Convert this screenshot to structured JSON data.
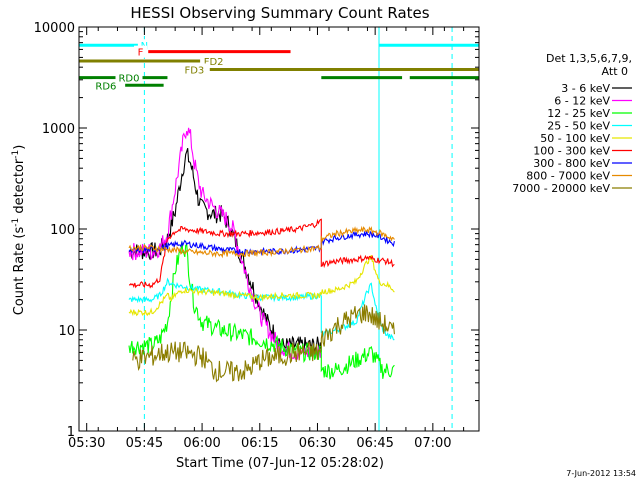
{
  "chart_data": {
    "type": "line",
    "title": "HESSI Observing Summary Count Rates",
    "xlabel": "Start Time (07-Jun-12 05:28:02)",
    "ylabel": "Count Rate (s",
    "ylabel_sup1": "-1",
    "ylabel_mid": " detector",
    "ylabel_sup2": "-1",
    "ylabel_end": ")",
    "y_scale": "log",
    "ylim": [
      1,
      10000
    ],
    "xlim": [
      "05:28",
      "07:12"
    ],
    "x_ticks": [
      "05:30",
      "05:45",
      "06:00",
      "06:15",
      "06:30",
      "06:45",
      "07:00"
    ],
    "y_ticks": [
      "1",
      "10",
      "100",
      "1000",
      "10000"
    ],
    "grid": false,
    "legend_title": "Det 1,3,5,6,7,9,",
    "legend_subtitle": "Att 0",
    "legend_position": "right",
    "series": [
      {
        "name": "3 - 6 keV",
        "color": "#000000",
        "points": [
          [
            "05:41",
            60
          ],
          [
            "05:47",
            60
          ],
          [
            "05:49",
            62
          ],
          [
            "05:51",
            80
          ],
          [
            "05:53",
            150
          ],
          [
            "05:55",
            400
          ],
          [
            "05:56",
            550
          ],
          [
            "05:57",
            450
          ],
          [
            "05:58",
            300
          ],
          [
            "05:59",
            200
          ],
          [
            "06:00",
            160
          ],
          [
            "06:03",
            140
          ],
          [
            "06:05",
            140
          ],
          [
            "06:07",
            110
          ],
          [
            "06:09",
            70
          ],
          [
            "06:11",
            45
          ],
          [
            "06:13",
            28
          ],
          [
            "06:15",
            18
          ],
          [
            "06:17",
            12
          ],
          [
            "06:19",
            9
          ],
          [
            "06:21",
            7
          ],
          [
            "06:25",
            7
          ],
          [
            "06:31",
            7
          ]
        ]
      },
      {
        "name": "6 - 12 keV",
        "color": "#ff00ff",
        "points": [
          [
            "05:41",
            60
          ],
          [
            "05:47",
            60
          ],
          [
            "05:49",
            65
          ],
          [
            "05:51",
            90
          ],
          [
            "05:53",
            250
          ],
          [
            "05:55",
            700
          ],
          [
            "05:56",
            1050
          ],
          [
            "05:57",
            800
          ],
          [
            "05:58",
            450
          ],
          [
            "05:59",
            300
          ],
          [
            "06:00",
            220
          ],
          [
            "06:02",
            180
          ],
          [
            "06:04",
            150
          ],
          [
            "06:06",
            130
          ],
          [
            "06:08",
            100
          ],
          [
            "06:10",
            55
          ],
          [
            "06:12",
            30
          ],
          [
            "06:14",
            18
          ],
          [
            "06:16",
            12
          ],
          [
            "06:18",
            9
          ],
          [
            "06:20",
            7
          ],
          [
            "06:24",
            6
          ],
          [
            "06:31",
            6
          ]
        ]
      },
      {
        "name": "12 - 25 keV",
        "color": "#00ff00",
        "points": [
          [
            "05:41",
            7
          ],
          [
            "05:47",
            7
          ],
          [
            "05:49",
            8
          ],
          [
            "05:51",
            12
          ],
          [
            "05:53",
            40
          ],
          [
            "05:55",
            70
          ],
          [
            "05:56",
            60
          ],
          [
            "05:57",
            30
          ],
          [
            "05:58",
            18
          ],
          [
            "06:00",
            12
          ],
          [
            "06:05",
            10
          ],
          [
            "06:10",
            9
          ],
          [
            "06:15",
            8
          ],
          [
            "06:20",
            7
          ],
          [
            "06:25",
            6
          ],
          [
            "06:31",
            6
          ],
          [
            "06:31",
            4
          ],
          [
            "06:35",
            4
          ],
          [
            "06:40",
            5
          ],
          [
            "06:44",
            6
          ],
          [
            "06:47",
            4
          ],
          [
            "06:50",
            4
          ]
        ]
      },
      {
        "name": "25 - 50 keV",
        "color": "#00ffff",
        "points": [
          [
            "05:41",
            20
          ],
          [
            "05:47",
            20
          ],
          [
            "05:49",
            22
          ],
          [
            "05:51",
            30
          ],
          [
            "05:53",
            28
          ],
          [
            "05:55",
            27
          ],
          [
            "06:00",
            25
          ],
          [
            "06:05",
            24
          ],
          [
            "06:10",
            22
          ],
          [
            "06:15",
            21
          ],
          [
            "06:20",
            21
          ],
          [
            "06:25",
            21
          ],
          [
            "06:31",
            22
          ],
          [
            "06:31",
            9
          ],
          [
            "06:35",
            10
          ],
          [
            "06:40",
            12
          ],
          [
            "06:43",
            24
          ],
          [
            "06:44",
            28
          ],
          [
            "06:46",
            12
          ],
          [
            "06:48",
            9
          ],
          [
            "06:50",
            8
          ]
        ]
      },
      {
        "name": "50 - 100 keV",
        "color": "#e6e600",
        "points": [
          [
            "05:41",
            15
          ],
          [
            "05:47",
            15
          ],
          [
            "05:49",
            18
          ],
          [
            "05:51",
            22
          ],
          [
            "05:52",
            20
          ],
          [
            "05:53",
            22
          ],
          [
            "05:55",
            25
          ],
          [
            "06:00",
            24
          ],
          [
            "06:05",
            23
          ],
          [
            "06:10",
            22
          ],
          [
            "06:15",
            21
          ],
          [
            "06:20",
            22
          ],
          [
            "06:25",
            22
          ],
          [
            "06:31",
            22
          ],
          [
            "06:31",
            24
          ],
          [
            "06:35",
            25
          ],
          [
            "06:40",
            30
          ],
          [
            "06:43",
            48
          ],
          [
            "06:44",
            52
          ],
          [
            "06:46",
            30
          ],
          [
            "06:48",
            28
          ],
          [
            "06:50",
            25
          ]
        ]
      },
      {
        "name": "100 - 300 keV",
        "color": "#ff0000",
        "points": [
          [
            "05:41",
            28
          ],
          [
            "05:47",
            28
          ],
          [
            "05:49",
            32
          ],
          [
            "05:51",
            80
          ],
          [
            "05:53",
            95
          ],
          [
            "05:55",
            100
          ],
          [
            "06:00",
            95
          ],
          [
            "06:05",
            90
          ],
          [
            "06:10",
            90
          ],
          [
            "06:15",
            92
          ],
          [
            "06:20",
            95
          ],
          [
            "06:25",
            100
          ],
          [
            "06:29",
            110
          ],
          [
            "06:31",
            120
          ],
          [
            "06:31",
            45
          ],
          [
            "06:35",
            48
          ],
          [
            "06:40",
            50
          ],
          [
            "06:43",
            52
          ],
          [
            "06:45",
            50
          ],
          [
            "06:48",
            48
          ],
          [
            "06:50",
            45
          ]
        ]
      },
      {
        "name": "300 - 800 keV",
        "color": "#0000ff",
        "points": [
          [
            "05:41",
            60
          ],
          [
            "05:47",
            63
          ],
          [
            "05:50",
            66
          ],
          [
            "05:53",
            70
          ],
          [
            "05:55",
            72
          ],
          [
            "06:00",
            68
          ],
          [
            "06:05",
            63
          ],
          [
            "06:10",
            60
          ],
          [
            "06:15",
            60
          ],
          [
            "06:20",
            60
          ],
          [
            "06:25",
            62
          ],
          [
            "06:31",
            65
          ],
          [
            "06:31",
            75
          ],
          [
            "06:35",
            82
          ],
          [
            "06:40",
            88
          ],
          [
            "06:43",
            90
          ],
          [
            "06:46",
            85
          ],
          [
            "06:48",
            78
          ],
          [
            "06:50",
            72
          ]
        ]
      },
      {
        "name": "800 - 7000 keV",
        "color": "#e68a00",
        "points": [
          [
            "05:41",
            65
          ],
          [
            "05:47",
            65
          ],
          [
            "05:50",
            63
          ],
          [
            "05:53",
            62
          ],
          [
            "05:55",
            60
          ],
          [
            "06:00",
            58
          ],
          [
            "06:05",
            57
          ],
          [
            "06:10",
            57
          ],
          [
            "06:15",
            58
          ],
          [
            "06:20",
            60
          ],
          [
            "06:25",
            62
          ],
          [
            "06:31",
            65
          ],
          [
            "06:31",
            80
          ],
          [
            "06:35",
            90
          ],
          [
            "06:40",
            96
          ],
          [
            "06:43",
            98
          ],
          [
            "06:46",
            92
          ],
          [
            "06:48",
            85
          ],
          [
            "06:50",
            80
          ]
        ]
      },
      {
        "name": "7000 - 20000 keV",
        "color": "#8b7d00",
        "points": [
          [
            "05:42",
            5
          ],
          [
            "05:47",
            5.5
          ],
          [
            "05:50",
            6
          ],
          [
            "05:53",
            6
          ],
          [
            "05:55",
            6
          ],
          [
            "06:00",
            5.5
          ],
          [
            "06:03",
            4
          ],
          [
            "06:08",
            3.8
          ],
          [
            "06:12",
            4
          ],
          [
            "06:15",
            5
          ],
          [
            "06:20",
            5.5
          ],
          [
            "06:25",
            6
          ],
          [
            "06:31",
            6
          ],
          [
            "06:31",
            8
          ],
          [
            "06:35",
            11
          ],
          [
            "06:40",
            14
          ],
          [
            "06:43",
            15
          ],
          [
            "06:46",
            12
          ],
          [
            "06:48",
            11
          ],
          [
            "06:50",
            9
          ]
        ]
      }
    ],
    "vertical_lines": [
      {
        "x": "05:28",
        "color": "#00ffff",
        "style": "solid"
      },
      {
        "x": "05:45",
        "color": "#00ffff",
        "style": "dashed"
      },
      {
        "x": "06:46",
        "color": "#00ffff",
        "style": "solid"
      },
      {
        "x": "07:05",
        "color": "#00ffff",
        "style": "dashed"
      }
    ],
    "flag_bars": [
      {
        "label": "N",
        "color": "#00ffff",
        "segments": [
          [
            "05:28",
            "05:45"
          ],
          [
            "06:46",
            "07:12"
          ]
        ],
        "label_at": "05:45",
        "level": 6600
      },
      {
        "label": "F",
        "color": "#ff0000",
        "segments": [
          [
            "05:46",
            "06:23"
          ]
        ],
        "label_at": "05:44",
        "level": 5700
      },
      {
        "label": "FD2",
        "color": "#808000",
        "segments": [
          [
            "05:28",
            "06:01"
          ]
        ],
        "label_at": "06:03",
        "level": 4600
      },
      {
        "label": "FD3",
        "color": "#808000",
        "segments": [
          [
            "06:02",
            "07:12"
          ]
        ],
        "label_at": "05:58",
        "level": 3800
      },
      {
        "label": "RD0",
        "color": "#008000",
        "segments": [
          [
            "05:28",
            "05:51"
          ],
          [
            "06:31",
            "06:52"
          ],
          [
            "06:54",
            "07:12"
          ]
        ],
        "label_at": "05:41",
        "level": 3150
      },
      {
        "label": "RD6",
        "color": "#008000",
        "segments": [
          [
            "05:40",
            "05:50"
          ]
        ],
        "label_at": "05:35",
        "level": 2650
      }
    ]
  },
  "footer": {
    "timestamp": "7-Jun-2012 13:54"
  }
}
